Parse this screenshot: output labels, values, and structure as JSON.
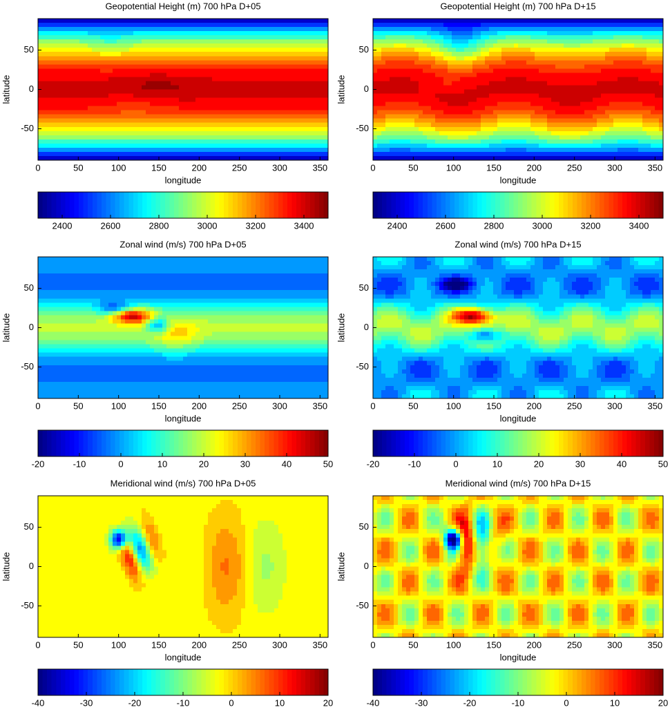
{
  "chart_data": [
    {
      "type": "contour",
      "title": "Geopotential Height (m) 700 hPa D+05",
      "xlabel": "longitude",
      "ylabel": "latitude",
      "xlim": [
        0,
        360
      ],
      "ylim": [
        -90,
        90
      ],
      "xticks": [
        0,
        50,
        100,
        150,
        200,
        250,
        300,
        350
      ],
      "yticks": [
        -50,
        0,
        50
      ],
      "colormap": "jet",
      "clim": [
        2300,
        3500
      ],
      "cticks": [
        2400,
        2600,
        2800,
        3000,
        3200,
        3400
      ]
    },
    {
      "type": "contour",
      "title": "Geopotential Height (m) 700 hPa D+15",
      "xlabel": "longitude",
      "ylabel": "latitude",
      "xlim": [
        0,
        360
      ],
      "ylim": [
        -90,
        90
      ],
      "xticks": [
        0,
        50,
        100,
        150,
        200,
        250,
        300,
        350
      ],
      "yticks": [
        -50,
        0,
        50
      ],
      "colormap": "jet",
      "clim": [
        2300,
        3500
      ],
      "cticks": [
        2400,
        2600,
        2800,
        3000,
        3200,
        3400
      ]
    },
    {
      "type": "contour",
      "title": "Zonal wind (m/s) 700 hPa D+05",
      "xlabel": "longitude",
      "ylabel": "latitude",
      "xlim": [
        0,
        360
      ],
      "ylim": [
        -90,
        90
      ],
      "xticks": [
        0,
        50,
        100,
        150,
        200,
        250,
        300,
        350
      ],
      "yticks": [
        -50,
        0,
        50
      ],
      "colormap": "jet",
      "clim": [
        -20,
        50
      ],
      "cticks": [
        -20,
        -10,
        0,
        10,
        20,
        30,
        40,
        50
      ]
    },
    {
      "type": "contour",
      "title": "Zonal wind (m/s) 700 hPa D+15",
      "xlabel": "longitude",
      "ylabel": "latitude",
      "xlim": [
        0,
        360
      ],
      "ylim": [
        -90,
        90
      ],
      "xticks": [
        0,
        50,
        100,
        150,
        200,
        250,
        300,
        350
      ],
      "yticks": [
        -50,
        0,
        50
      ],
      "colormap": "jet",
      "clim": [
        -20,
        50
      ],
      "cticks": [
        -20,
        -10,
        0,
        10,
        20,
        30,
        40,
        50
      ]
    },
    {
      "type": "contour",
      "title": "Meridional wind (m/s) 700 hPa D+05",
      "xlabel": "longitude",
      "ylabel": "latitude",
      "xlim": [
        0,
        360
      ],
      "ylim": [
        -90,
        90
      ],
      "xticks": [
        0,
        50,
        100,
        150,
        200,
        250,
        300,
        350
      ],
      "yticks": [
        -50,
        0,
        50
      ],
      "colormap": "jet",
      "clim": [
        -40,
        20
      ],
      "cticks": [
        -40,
        -30,
        -20,
        -10,
        0,
        10,
        20
      ]
    },
    {
      "type": "contour",
      "title": "Meridional wind (m/s) 700 hPa D+15",
      "xlabel": "longitude",
      "ylabel": "latitude",
      "xlim": [
        0,
        360
      ],
      "ylim": [
        -90,
        90
      ],
      "xticks": [
        0,
        50,
        100,
        150,
        200,
        250,
        300,
        350
      ],
      "yticks": [
        -50,
        0,
        50
      ],
      "colormap": "jet",
      "clim": [
        -40,
        20
      ],
      "cticks": [
        -40,
        -30,
        -20,
        -10,
        0,
        10,
        20
      ]
    }
  ]
}
